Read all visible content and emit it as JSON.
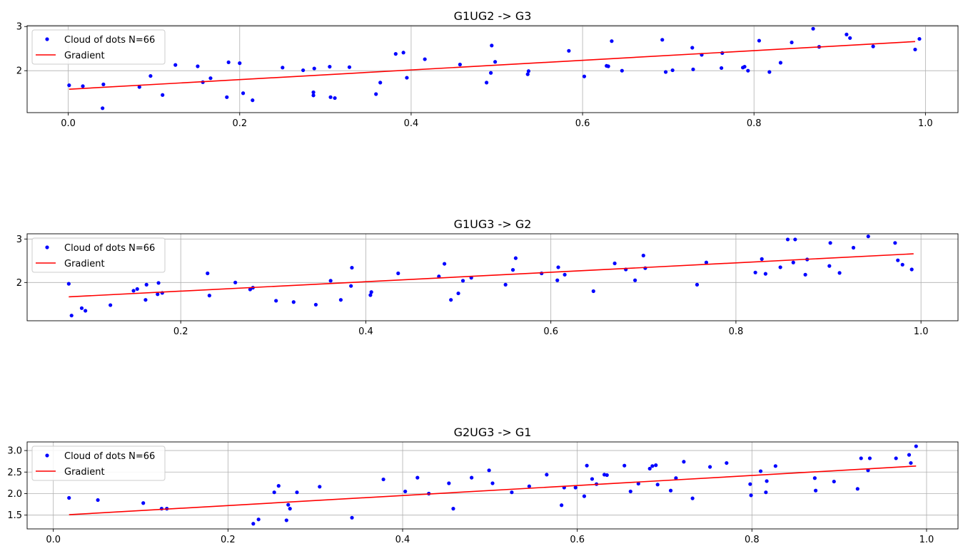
{
  "chart_data": [
    {
      "type": "scatter",
      "title": "G1UG2 -> G3",
      "xlabel": "",
      "ylabel": "",
      "xlim": [
        -0.048,
        1.038
      ],
      "ylim": [
        1.05,
        3.02
      ],
      "xticks": [
        0.0,
        0.2,
        0.4,
        0.6,
        0.8,
        1.0
      ],
      "xticklabels": [
        "0.0",
        "0.2",
        "0.4",
        "0.6",
        "0.8",
        "1.0"
      ],
      "yticks": [
        2,
        3
      ],
      "yticklabels": [
        "2",
        "3"
      ],
      "grid": true,
      "legend_position": "upper-left",
      "series": [
        {
          "name": "Cloud of dots N=66",
          "style": "dots",
          "color": "#0000ff",
          "x": [
            0.001,
            0.017,
            0.04,
            0.041,
            0.083,
            0.096,
            0.11,
            0.125,
            0.151,
            0.157,
            0.166,
            0.185,
            0.187,
            0.2,
            0.204,
            0.215,
            0.25,
            0.274,
            0.286,
            0.286,
            0.287,
            0.305,
            0.306,
            0.311,
            0.328,
            0.359,
            0.364,
            0.382,
            0.391,
            0.395,
            0.416,
            0.457,
            0.488,
            0.493,
            0.494,
            0.498,
            0.536,
            0.537,
            0.584,
            0.602,
            0.628,
            0.63,
            0.634,
            0.646,
            0.693,
            0.697,
            0.705,
            0.728,
            0.729,
            0.739,
            0.762,
            0.763,
            0.787,
            0.789,
            0.793,
            0.806,
            0.818,
            0.831,
            0.844,
            0.869,
            0.876,
            0.908,
            0.912,
            0.939,
            0.988,
            0.993
          ],
          "y": [
            1.67,
            1.65,
            1.15,
            1.69,
            1.63,
            1.88,
            1.45,
            2.13,
            2.1,
            1.74,
            1.83,
            1.4,
            2.19,
            2.17,
            1.49,
            1.33,
            2.07,
            2.01,
            1.51,
            1.44,
            2.05,
            2.09,
            1.4,
            1.38,
            2.08,
            1.47,
            1.73,
            2.38,
            2.41,
            1.84,
            2.26,
            2.14,
            1.73,
            1.95,
            2.57,
            2.2,
            1.92,
            1.99,
            2.45,
            1.87,
            2.11,
            2.1,
            2.67,
            2.0,
            2.7,
            1.97,
            2.01,
            2.52,
            2.03,
            2.36,
            2.06,
            2.4,
            2.07,
            2.09,
            2.0,
            2.68,
            1.97,
            2.18,
            2.64,
            2.95,
            2.54,
            2.82,
            2.74,
            2.55,
            2.48,
            2.72
          ]
        },
        {
          "name": "Gradient",
          "style": "line",
          "color": "#ff0000",
          "x": [
            0.001,
            0.988
          ],
          "y": [
            1.58,
            2.66
          ]
        }
      ]
    },
    {
      "type": "scatter",
      "title": "G1UG3 -> G2",
      "xlabel": "",
      "ylabel": "",
      "xlim": [
        0.034,
        1.04
      ],
      "ylim": [
        1.12,
        3.12
      ],
      "xticks": [
        0.2,
        0.4,
        0.6,
        0.8,
        1.0
      ],
      "xticklabels": [
        "0.2",
        "0.4",
        "0.6",
        "0.8",
        "1.0"
      ],
      "yticks": [
        2,
        3
      ],
      "yticklabels": [
        "2",
        "3"
      ],
      "grid": true,
      "legend_position": "upper-left",
      "series": [
        {
          "name": "Cloud of dots N=66",
          "style": "dots",
          "color": "#0000ff",
          "x": [
            0.079,
            0.082,
            0.093,
            0.097,
            0.124,
            0.149,
            0.153,
            0.162,
            0.163,
            0.175,
            0.176,
            0.18,
            0.229,
            0.231,
            0.259,
            0.275,
            0.278,
            0.303,
            0.322,
            0.346,
            0.362,
            0.373,
            0.384,
            0.385,
            0.405,
            0.406,
            0.435,
            0.479,
            0.485,
            0.492,
            0.5,
            0.505,
            0.514,
            0.551,
            0.559,
            0.562,
            0.59,
            0.607,
            0.608,
            0.615,
            0.646,
            0.669,
            0.681,
            0.691,
            0.7,
            0.702,
            0.758,
            0.768,
            0.821,
            0.828,
            0.832,
            0.848,
            0.856,
            0.862,
            0.864,
            0.875,
            0.877,
            0.901,
            0.902,
            0.912,
            0.927,
            0.943,
            0.972,
            0.975,
            0.98,
            0.99
          ],
          "y": [
            1.97,
            1.24,
            1.41,
            1.35,
            1.48,
            1.81,
            1.85,
            1.6,
            1.95,
            1.73,
            1.99,
            1.76,
            2.21,
            1.7,
            2.0,
            1.84,
            1.88,
            1.58,
            1.55,
            1.49,
            2.04,
            1.6,
            1.92,
            2.34,
            1.71,
            1.78,
            2.21,
            2.14,
            2.43,
            1.6,
            1.75,
            2.04,
            2.11,
            1.95,
            2.29,
            2.56,
            2.21,
            2.05,
            2.35,
            2.18,
            1.8,
            2.44,
            2.3,
            2.05,
            2.62,
            2.33,
            1.95,
            2.46,
            2.23,
            2.54,
            2.2,
            2.35,
            2.99,
            2.46,
            2.99,
            2.18,
            2.53,
            2.38,
            2.91,
            2.22,
            2.8,
            3.06,
            2.91,
            2.51,
            2.41,
            2.3
          ]
        },
        {
          "name": "Gradient",
          "style": "line",
          "color": "#ff0000",
          "x": [
            0.079,
            0.992
          ],
          "y": [
            1.67,
            2.66
          ]
        }
      ]
    },
    {
      "type": "scatter",
      "title": "G2UG3 -> G1",
      "xlabel": "",
      "ylabel": "",
      "xlim": [
        -0.03,
        1.036
      ],
      "ylim": [
        1.18,
        3.2
      ],
      "xticks": [
        0.0,
        0.2,
        0.4,
        0.6,
        0.8,
        1.0
      ],
      "xticklabels": [
        "0.0",
        "0.2",
        "0.4",
        "0.6",
        "0.8",
        "1.0"
      ],
      "yticks": [
        1.5,
        2.0,
        2.5,
        3.0
      ],
      "yticklabels": [
        "1.5",
        "2.0",
        "2.5",
        "3.0"
      ],
      "grid": true,
      "legend_position": "upper-left",
      "series": [
        {
          "name": "Cloud of dots N=66",
          "style": "dots",
          "color": "#0000ff",
          "x": [
            0.018,
            0.051,
            0.103,
            0.124,
            0.13,
            0.229,
            0.235,
            0.253,
            0.258,
            0.267,
            0.269,
            0.271,
            0.279,
            0.305,
            0.342,
            0.378,
            0.403,
            0.417,
            0.43,
            0.453,
            0.458,
            0.479,
            0.499,
            0.503,
            0.525,
            0.545,
            0.565,
            0.582,
            0.585,
            0.598,
            0.608,
            0.611,
            0.617,
            0.622,
            0.631,
            0.634,
            0.654,
            0.661,
            0.67,
            0.683,
            0.686,
            0.69,
            0.692,
            0.707,
            0.713,
            0.722,
            0.732,
            0.752,
            0.771,
            0.798,
            0.799,
            0.81,
            0.816,
            0.817,
            0.827,
            0.872,
            0.873,
            0.894,
            0.921,
            0.925,
            0.933,
            0.935,
            0.965,
            0.98,
            0.982,
            0.988
          ],
          "y": [
            1.9,
            1.85,
            1.78,
            1.65,
            1.65,
            1.3,
            1.4,
            2.03,
            2.18,
            1.38,
            1.74,
            1.65,
            2.03,
            2.16,
            1.44,
            2.33,
            2.05,
            2.37,
            2.0,
            2.24,
            1.65,
            2.37,
            2.54,
            2.24,
            2.03,
            2.17,
            2.44,
            1.73,
            2.14,
            2.14,
            1.94,
            2.65,
            2.34,
            2.22,
            2.44,
            2.43,
            2.65,
            2.05,
            2.23,
            2.58,
            2.64,
            2.66,
            2.21,
            2.07,
            2.36,
            2.74,
            1.89,
            2.62,
            2.71,
            2.22,
            1.96,
            2.52,
            2.03,
            2.29,
            2.64,
            2.36,
            2.07,
            2.28,
            2.11,
            2.82,
            2.54,
            2.82,
            2.82,
            2.9,
            2.71,
            3.1
          ]
        },
        {
          "name": "Gradient",
          "style": "line",
          "color": "#ff0000",
          "x": [
            0.018,
            0.988
          ],
          "y": [
            1.51,
            2.64
          ]
        }
      ]
    }
  ]
}
